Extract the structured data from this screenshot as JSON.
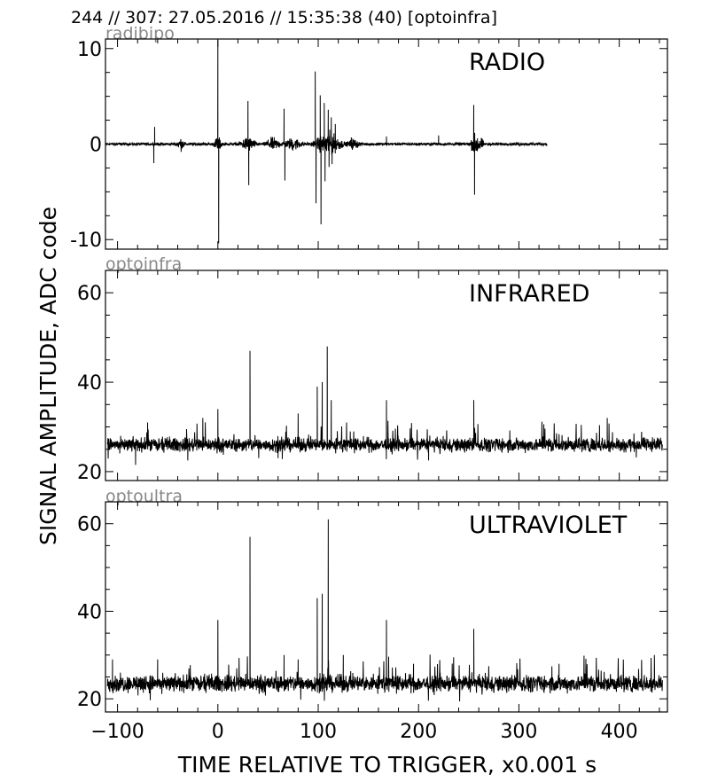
{
  "figure": {
    "title": "244 // 307:   27.05.2016 // 15:35:38 (40)  [optoinfra]",
    "xlabel": "TIME RELATIVE TO TRIGGER,   x0.001 s",
    "ylabel": "SIGNAL AMPLITUDE,  ADC code"
  },
  "chart_data": [
    {
      "type": "line",
      "series_name": "radibipo",
      "panel_label": "RADIO",
      "xlim": [
        -112,
        448
      ],
      "ylim": [
        -11,
        11
      ],
      "xticks": [
        -100,
        0,
        100,
        200,
        300,
        400
      ],
      "xtick_labels": [
        "",
        "",
        "",
        "",
        "",
        ""
      ],
      "yticks": [
        -10,
        0,
        10
      ],
      "ytick_labels": [
        "-10",
        "0",
        "10"
      ],
      "line_color": "#000000",
      "data_xrange": [
        -112,
        328
      ],
      "baseline": 0.0,
      "noise": 0.12,
      "spikes": [
        [
          -63,
          1.8
        ],
        [
          -63.8,
          -2.0
        ],
        [
          0,
          10.9
        ],
        [
          0.8,
          -10.4
        ],
        [
          30,
          4.5
        ],
        [
          30.8,
          -4.3
        ],
        [
          66,
          3.7
        ],
        [
          66.8,
          -3.8
        ],
        [
          97,
          7.6
        ],
        [
          97.8,
          -6.2
        ],
        [
          102,
          5.1
        ],
        [
          102.8,
          -8.4
        ],
        [
          106,
          4.3
        ],
        [
          106.8,
          -3.9
        ],
        [
          110,
          3.6
        ],
        [
          110.8,
          -2.4
        ],
        [
          113,
          2.8
        ],
        [
          113.8,
          -2.1
        ],
        [
          117,
          2.1
        ],
        [
          255,
          4.1
        ],
        [
          255.8,
          -5.3
        ],
        [
          133,
          0.7
        ],
        [
          168,
          0.8
        ],
        [
          220,
          0.9
        ]
      ],
      "bursts": [
        [
          -37,
          5,
          0.5
        ],
        [
          0,
          5,
          0.6
        ],
        [
          30,
          10,
          0.6
        ],
        [
          55,
          10,
          0.5
        ],
        [
          75,
          12,
          0.5
        ],
        [
          110,
          18,
          1.0
        ],
        [
          135,
          8,
          0.4
        ],
        [
          258,
          8,
          1.0
        ]
      ]
    },
    {
      "type": "line",
      "series_name": "optoinfra",
      "panel_label": "INFRARED",
      "xlim": [
        -112,
        448
      ],
      "ylim": [
        18,
        65
      ],
      "xticks": [
        -100,
        0,
        100,
        200,
        300,
        400
      ],
      "xtick_labels": [
        "",
        "",
        "",
        "",
        "",
        ""
      ],
      "yticks": [
        20,
        40,
        60
      ],
      "ytick_labels": [
        "20",
        "40",
        "60"
      ],
      "line_color": "#000000",
      "data_xrange": [
        -110,
        443
      ],
      "baseline": 26.0,
      "noise": 1.3,
      "spikes": [
        [
          32,
          47
        ],
        [
          109,
          48
        ],
        [
          99,
          39
        ],
        [
          104,
          40
        ],
        [
          113,
          36
        ],
        [
          168,
          36
        ],
        [
          255,
          36
        ],
        [
          0,
          34
        ],
        [
          -15,
          32
        ],
        [
          -70,
          31
        ],
        [
          80,
          33
        ],
        [
          388,
          32
        ],
        [
          -82,
          21.5
        ],
        [
          -30,
          22.5
        ],
        [
          60,
          23
        ],
        [
          210,
          22.5
        ]
      ],
      "bursts": []
    },
    {
      "type": "line",
      "series_name": "optoultra",
      "panel_label": "ULTRAVIOLET",
      "xlim": [
        -112,
        448
      ],
      "ylim": [
        17,
        65
      ],
      "xticks": [
        -100,
        0,
        100,
        200,
        300,
        400
      ],
      "xtick_labels": [
        "−100",
        "0",
        "100",
        "200",
        "300",
        "400"
      ],
      "yticks": [
        20,
        40,
        60
      ],
      "ytick_labels": [
        "20",
        "40",
        "60"
      ],
      "line_color": "#000000",
      "data_xrange": [
        -110,
        443
      ],
      "baseline": 23.5,
      "noise": 1.6,
      "spikes": [
        [
          32,
          57
        ],
        [
          110,
          61
        ],
        [
          99,
          43
        ],
        [
          104,
          44
        ],
        [
          0,
          38
        ],
        [
          168,
          38
        ],
        [
          255,
          36
        ],
        [
          66,
          30
        ],
        [
          80,
          29
        ],
        [
          125,
          30
        ],
        [
          435,
          30
        ],
        [
          -105,
          29
        ],
        [
          -60,
          29
        ],
        [
          195,
          28
        ],
        [
          340,
          28
        ]
      ],
      "bursts": []
    }
  ]
}
